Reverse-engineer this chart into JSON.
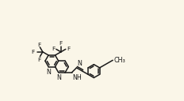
{
  "bg_color": "#faf6e8",
  "bond_color": "#1a1a1a",
  "lw": 1.1,
  "fs": 5.8,
  "BL": 0.44,
  "xlim": [
    -0.15,
    4.75
  ],
  "ylim": [
    -1.05,
    1.45
  ]
}
